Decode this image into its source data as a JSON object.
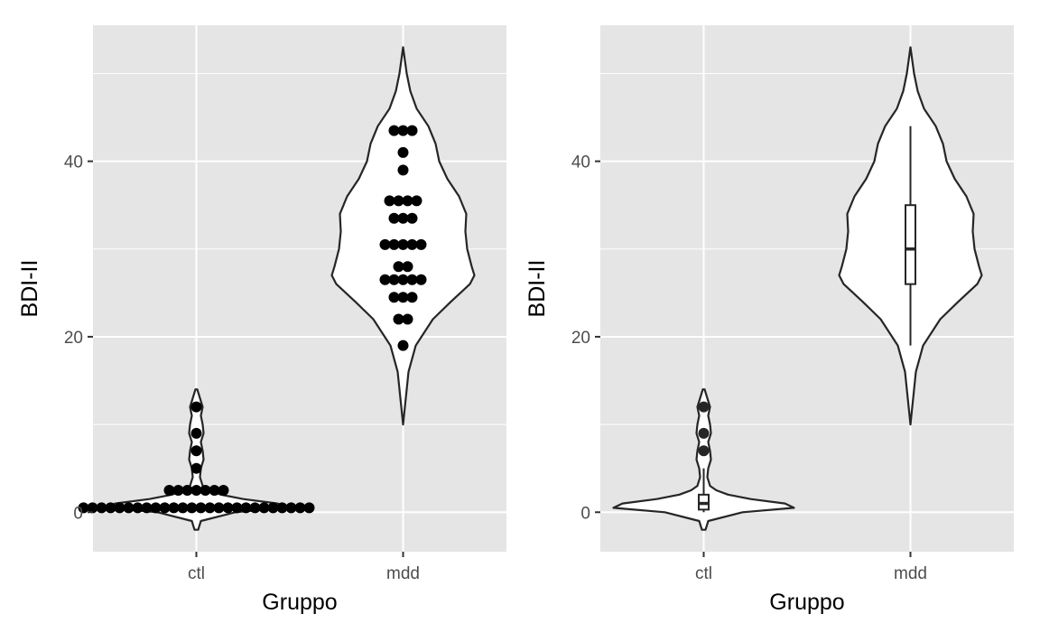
{
  "colors": {
    "panel_bg": "#E5E5E5",
    "grid_major": "#FFFFFF",
    "violin_fill": "#FFFFFF",
    "violin_line": "#262626",
    "dots": "#000000",
    "tick_text": "#4D4D4D",
    "title_text": "#000000"
  },
  "chart_data": [
    {
      "type": "violin",
      "overlay": "dotplot",
      "xlabel": "Gruppo",
      "ylabel": "BDI-II",
      "categories": [
        "ctl",
        "mdd"
      ],
      "ylim": [
        -4.5,
        55.5
      ],
      "yticks": [
        0,
        20,
        40
      ],
      "ytick_labels": [
        "0",
        "20",
        "40"
      ],
      "grid": true,
      "violins": [
        {
          "category": "ctl",
          "ymin": -2,
          "ymax": 14,
          "density": [
            [
              -2,
              0.02
            ],
            [
              -1,
              0.05
            ],
            [
              0,
              0.43
            ],
            [
              0.5,
              1.0
            ],
            [
              1,
              0.9
            ],
            [
              1.5,
              0.52
            ],
            [
              2,
              0.27
            ],
            [
              2.5,
              0.14
            ],
            [
              3,
              0.07
            ],
            [
              4,
              0.04
            ],
            [
              5,
              0.05
            ],
            [
              6,
              0.08
            ],
            [
              7,
              0.07
            ],
            [
              8,
              0.05
            ],
            [
              9,
              0.08
            ],
            [
              10,
              0.07
            ],
            [
              11,
              0.05
            ],
            [
              12,
              0.07
            ],
            [
              13,
              0.04
            ],
            [
              14,
              0.01
            ]
          ]
        },
        {
          "category": "mdd",
          "ymin": 10,
          "ymax": 53,
          "density": [
            [
              10,
              0.0
            ],
            [
              13,
              0.03
            ],
            [
              16,
              0.06
            ],
            [
              19,
              0.14
            ],
            [
              22,
              0.33
            ],
            [
              24,
              0.53
            ],
            [
              26,
              0.74
            ],
            [
              27,
              0.79
            ],
            [
              28,
              0.76
            ],
            [
              30,
              0.71
            ],
            [
              32,
              0.69
            ],
            [
              34,
              0.7
            ],
            [
              36,
              0.62
            ],
            [
              38,
              0.49
            ],
            [
              40,
              0.4
            ],
            [
              42,
              0.36
            ],
            [
              44,
              0.28
            ],
            [
              46,
              0.15
            ],
            [
              48,
              0.08
            ],
            [
              50,
              0.04
            ],
            [
              53,
              0.0
            ]
          ]
        }
      ],
      "dots": [
        {
          "category": "ctl",
          "y": 0.5,
          "count": 26
        },
        {
          "category": "ctl",
          "y": 2.5,
          "count": 7
        },
        {
          "category": "ctl",
          "y": 5,
          "count": 1
        },
        {
          "category": "ctl",
          "y": 7,
          "count": 1
        },
        {
          "category": "ctl",
          "y": 9,
          "count": 1
        },
        {
          "category": "ctl",
          "y": 12,
          "count": 1
        },
        {
          "category": "mdd",
          "y": 19,
          "count": 1
        },
        {
          "category": "mdd",
          "y": 22,
          "count": 2
        },
        {
          "category": "mdd",
          "y": 24.5,
          "count": 3
        },
        {
          "category": "mdd",
          "y": 26.5,
          "count": 5
        },
        {
          "category": "mdd",
          "y": 28,
          "count": 2
        },
        {
          "category": "mdd",
          "y": 30.5,
          "count": 5
        },
        {
          "category": "mdd",
          "y": 33.5,
          "count": 3
        },
        {
          "category": "mdd",
          "y": 35.5,
          "count": 4
        },
        {
          "category": "mdd",
          "y": 39,
          "count": 1
        },
        {
          "category": "mdd",
          "y": 41,
          "count": 1
        },
        {
          "category": "mdd",
          "y": 43.5,
          "count": 3
        }
      ]
    },
    {
      "type": "violin",
      "overlay": "boxplot",
      "xlabel": "Gruppo",
      "ylabel": "BDI-II",
      "categories": [
        "ctl",
        "mdd"
      ],
      "ylim": [
        -4.5,
        55.5
      ],
      "yticks": [
        0,
        20,
        40
      ],
      "ytick_labels": [
        "0",
        "20",
        "40"
      ],
      "grid": true,
      "violins": [
        {
          "category": "ctl",
          "ymin": -2,
          "ymax": 14,
          "density": [
            [
              -2,
              0.02
            ],
            [
              -1,
              0.05
            ],
            [
              0,
              0.43
            ],
            [
              0.5,
              1.0
            ],
            [
              1,
              0.9
            ],
            [
              1.5,
              0.52
            ],
            [
              2,
              0.27
            ],
            [
              2.5,
              0.14
            ],
            [
              3,
              0.07
            ],
            [
              4,
              0.04
            ],
            [
              5,
              0.05
            ],
            [
              6,
              0.08
            ],
            [
              7,
              0.07
            ],
            [
              8,
              0.05
            ],
            [
              9,
              0.08
            ],
            [
              10,
              0.07
            ],
            [
              11,
              0.05
            ],
            [
              12,
              0.07
            ],
            [
              13,
              0.04
            ],
            [
              14,
              0.01
            ]
          ]
        },
        {
          "category": "mdd",
          "ymin": 10,
          "ymax": 53,
          "density": [
            [
              10,
              0.0
            ],
            [
              13,
              0.03
            ],
            [
              16,
              0.06
            ],
            [
              19,
              0.14
            ],
            [
              22,
              0.33
            ],
            [
              24,
              0.53
            ],
            [
              26,
              0.74
            ],
            [
              27,
              0.79
            ],
            [
              28,
              0.76
            ],
            [
              30,
              0.71
            ],
            [
              32,
              0.69
            ],
            [
              34,
              0.7
            ],
            [
              36,
              0.62
            ],
            [
              38,
              0.49
            ],
            [
              40,
              0.4
            ],
            [
              42,
              0.36
            ],
            [
              44,
              0.28
            ],
            [
              46,
              0.15
            ],
            [
              48,
              0.08
            ],
            [
              50,
              0.04
            ],
            [
              53,
              0.0
            ]
          ]
        }
      ],
      "boxes": [
        {
          "category": "ctl",
          "whisker_low": 0,
          "q1": 0.3,
          "median": 1,
          "q3": 2,
          "whisker_high": 5,
          "outliers": [
            7,
            9,
            12
          ]
        },
        {
          "category": "mdd",
          "whisker_low": 19,
          "q1": 26,
          "median": 30,
          "q3": 35,
          "whisker_high": 44,
          "outliers": []
        }
      ]
    }
  ]
}
